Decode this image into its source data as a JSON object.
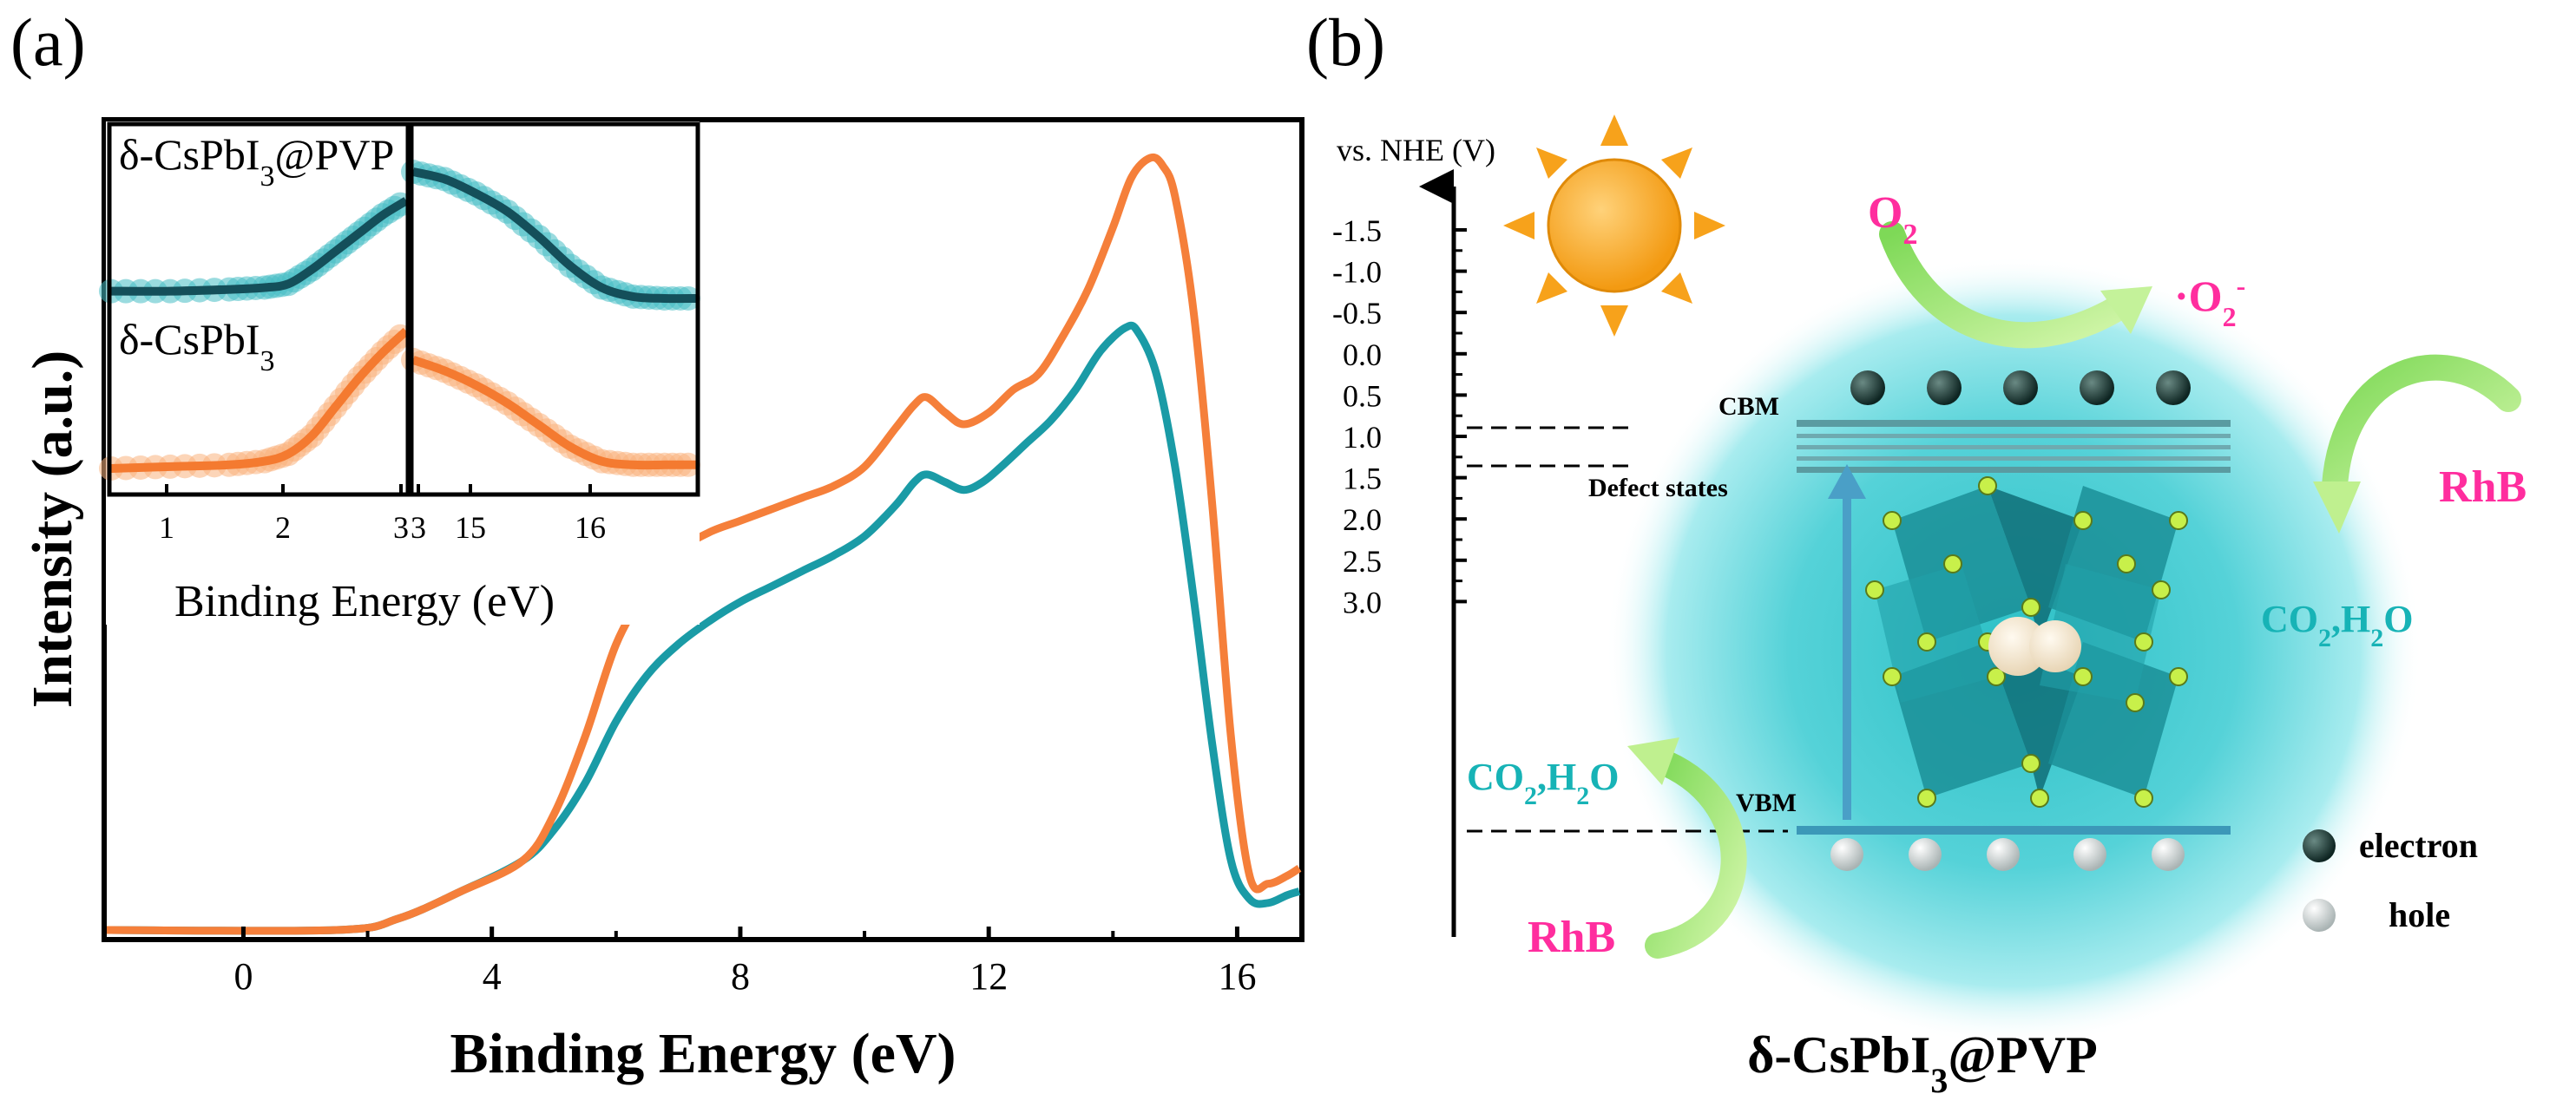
{
  "panel_a": {
    "label": "(a)",
    "xlabel": "Binding Energy (eV)",
    "ylabel": "Intensity (a.u.)"
  },
  "panel_b": {
    "label": "(b)",
    "axis_label": "vs. NHE (V)",
    "ticks": [
      "-1.5",
      "-1.0",
      "-0.5",
      "0.0",
      "0.5",
      "1.0",
      "1.5",
      "2.0",
      "2.5",
      "3.0"
    ],
    "cbm_label": "CBM",
    "defect_label": "Defect states",
    "vbm_label": "VBM",
    "o2": "O",
    "o2_sub": "2",
    "superoxide_prefix": "·O",
    "superoxide_sub": "2",
    "superoxide_sup": "-",
    "rhb_upper": "RhB",
    "rhb_lower": "RhB",
    "products_right": {
      "a": "CO",
      "b": "2",
      "c": ",H",
      "d": "2",
      "e": "O"
    },
    "products_left": {
      "a": "CO",
      "b": "2",
      "c": ",H",
      "d": "2",
      "e": "O"
    },
    "legend_electron": "electron",
    "legend_hole": "hole",
    "title": {
      "a": "δ-CsPbI",
      "b": "3",
      "c": "@PVP"
    },
    "colors": {
      "magenta": "#ff2d9e",
      "teal": "#17b3b6",
      "sphere": "#5fd6dc",
      "sun": "#f7a21b"
    }
  },
  "chart_data": [
    {
      "type": "line",
      "xlabel": "Binding Energy (eV)",
      "ylabel": "Intensity (a.u.)",
      "xlim": [
        -2.2,
        17
      ],
      "ylim": [
        0,
        100
      ],
      "xticks": [
        0,
        4,
        8,
        12,
        16
      ],
      "grid": false,
      "series": [
        {
          "color": "#1a9ba6",
          "x": [
            -2.2,
            1.5,
            2.5,
            3.5,
            4.5,
            5.0,
            5.5,
            6.0,
            6.5,
            7.0,
            7.5,
            8.0,
            8.5,
            9.0,
            9.5,
            10.0,
            10.5,
            10.8,
            11.0,
            11.3,
            11.6,
            11.9,
            12.2,
            12.6,
            13.0,
            13.4,
            13.8,
            14.2,
            14.4,
            14.7,
            15.0,
            15.3,
            15.6,
            15.9,
            16.2,
            16.5,
            16.8,
            17.0
          ],
          "y": [
            0,
            0,
            1.5,
            5,
            9,
            13,
            19,
            27,
            33,
            37,
            40,
            42.5,
            44.5,
            46.5,
            48.5,
            51,
            55,
            58,
            59,
            58,
            57,
            58,
            60,
            63,
            66,
            70,
            75,
            78,
            77.5,
            72,
            60,
            43,
            24,
            9,
            4,
            3.5,
            4.5,
            5
          ]
        },
        {
          "color": "#f57f3a",
          "x": [
            -2.2,
            1.5,
            2.5,
            3.5,
            4.5,
            5.0,
            5.5,
            6.0,
            6.5,
            7.0,
            7.5,
            8.0,
            8.5,
            9.0,
            9.5,
            10.0,
            10.5,
            10.8,
            11.0,
            11.3,
            11.6,
            12.0,
            12.4,
            12.8,
            13.2,
            13.6,
            14.0,
            14.3,
            14.6,
            14.8,
            15.0,
            15.3,
            15.6,
            15.9,
            16.2,
            16.5,
            16.8,
            17.0
          ],
          "y": [
            0,
            0,
            1.5,
            5,
            9,
            15,
            25,
            37,
            44,
            49,
            51.5,
            53,
            54.5,
            56,
            57.5,
            60,
            65,
            68,
            69,
            67,
            65.5,
            67,
            70,
            72,
            77,
            83,
            91,
            97.5,
            100,
            99,
            95,
            80,
            55,
            25,
            7,
            6,
            7,
            8
          ]
        }
      ]
    },
    {
      "type": "line",
      "xlabel": "Binding Energy (eV)",
      "xticks": [
        "1",
        "2",
        "3"
      ],
      "ylim": [
        0,
        100
      ],
      "series": [
        {
          "name": "δ-CsPbI3@PVP",
          "color": "#1a9ba6",
          "x": [
            0.5,
            1.0,
            1.5,
            1.8,
            2.0,
            2.2,
            2.4,
            2.6,
            2.8,
            3.0
          ],
          "y": [
            55,
            55,
            55.5,
            56,
            57,
            61,
            66,
            71,
            76,
            80
          ]
        },
        {
          "name": "δ-CsPbI3",
          "color": "#f57f3a",
          "x": [
            0.5,
            1.0,
            1.5,
            1.8,
            2.0,
            2.2,
            2.4,
            2.6,
            2.8,
            3.0
          ],
          "y": [
            6,
            6.5,
            7,
            8,
            10,
            15,
            23,
            31,
            38,
            44
          ]
        }
      ]
    },
    {
      "type": "line",
      "xlabel": "Binding Energy (eV)",
      "xticks": [
        "3",
        "15",
        "16"
      ],
      "ylim": [
        0,
        100
      ],
      "series": [
        {
          "name": "δ-CsPbI3@PVP",
          "color": "#1a9ba6",
          "x": [
            14.3,
            14.6,
            14.9,
            15.2,
            15.5,
            15.8,
            16.1,
            16.4,
            16.7,
            17.0
          ],
          "y": [
            88,
            86,
            82,
            77,
            70,
            62,
            56,
            53.5,
            53,
            53
          ]
        },
        {
          "name": "δ-CsPbI3",
          "color": "#f57f3a",
          "x": [
            14.3,
            14.6,
            14.9,
            15.2,
            15.5,
            15.8,
            16.1,
            16.4,
            16.7,
            17.0
          ],
          "y": [
            36,
            33,
            29,
            24,
            18,
            12,
            8,
            7,
            7,
            7
          ]
        }
      ]
    }
  ]
}
